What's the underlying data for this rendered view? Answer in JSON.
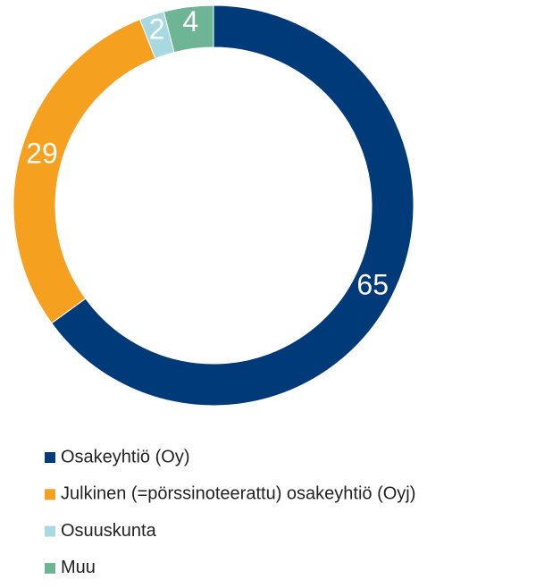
{
  "chart_data": {
    "type": "donut",
    "categories": [
      "Osakeyhtiö (Oy)",
      "Julkinen (=pörssinoteerattu) osakeyhtiö (Oyj)",
      "Osuuskunta",
      "Muu"
    ],
    "values": [
      65,
      29,
      2,
      4
    ],
    "colors": [
      "#003a78",
      "#f5a01f",
      "#a8d8e0",
      "#6db594"
    ],
    "legend": "bottom"
  }
}
